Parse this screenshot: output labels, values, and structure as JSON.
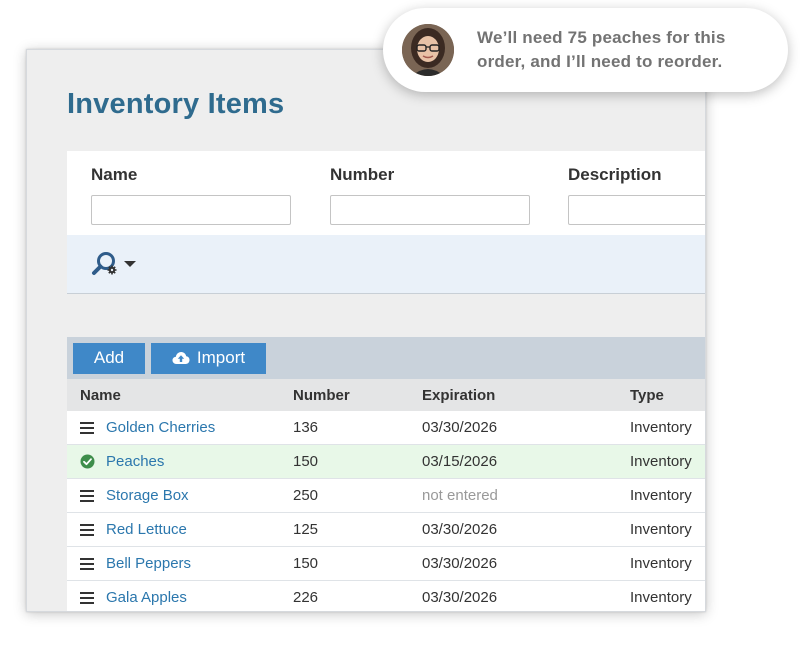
{
  "page": {
    "title": "Inventory Items"
  },
  "search": {
    "fields": [
      {
        "label": "Name",
        "value": ""
      },
      {
        "label": "Number",
        "value": ""
      },
      {
        "label": "Description",
        "value": ""
      }
    ],
    "toggle_icon": "search-icon"
  },
  "toolbar": {
    "add_label": "Add",
    "import_label": "Import",
    "import_icon": "cloud-upload-icon"
  },
  "grid": {
    "columns": [
      "Name",
      "Number",
      "Expiration",
      "Type"
    ],
    "rows": [
      {
        "name": "Golden Cherries",
        "number": "136",
        "expiration": "03/30/2026",
        "type": "Inventory",
        "icon": "drag-handle-icon"
      },
      {
        "name": "Peaches",
        "number": "150",
        "expiration": "03/15/2026",
        "type": "Inventory",
        "icon": "check-circle-icon"
      },
      {
        "name": "Storage Box",
        "number": "250",
        "expiration": "not entered",
        "type": "Inventory",
        "icon": "drag-handle-icon"
      },
      {
        "name": "Red Lettuce",
        "number": "125",
        "expiration": "03/30/2026",
        "type": "Inventory",
        "icon": "drag-handle-icon"
      },
      {
        "name": "Bell Peppers",
        "number": "150",
        "expiration": "03/30/2026",
        "type": "Inventory",
        "icon": "drag-handle-icon"
      },
      {
        "name": "Gala Apples",
        "number": "226",
        "expiration": "03/30/2026",
        "type": "Inventory",
        "icon": "drag-handle-icon"
      }
    ]
  },
  "chat": {
    "message": "We’ll need 75 peaches for this order, and I’ll need to reorder."
  },
  "colors": {
    "title": "#2f6b8e",
    "button": "#3f88c8",
    "link": "#2b77ad",
    "selected_row": "#e8f8e8",
    "check": "#3e8e4b"
  }
}
